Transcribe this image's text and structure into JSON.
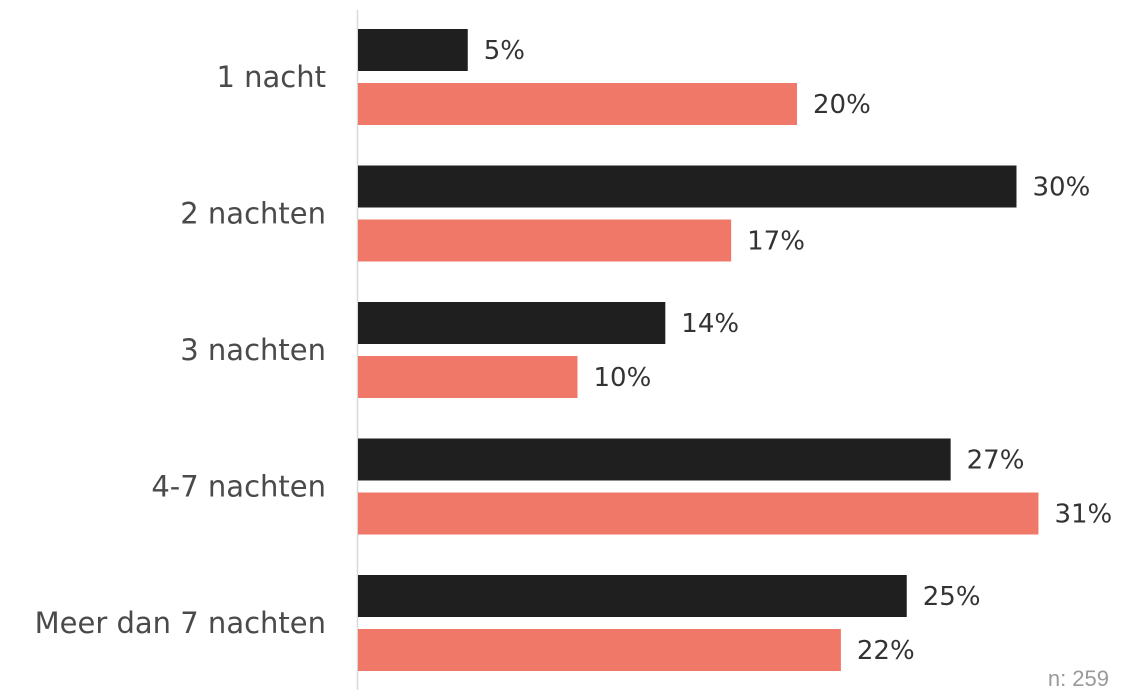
{
  "chart_data": {
    "type": "bar",
    "orientation": "horizontal",
    "categories": [
      "1 nacht",
      "2 nachten",
      "3 nachten",
      "4-7 nachten",
      "Meer dan 7 nachten"
    ],
    "series": [
      {
        "values": [
          5,
          30,
          14,
          27,
          25
        ],
        "color": "#1f1f1f"
      },
      {
        "values": [
          20,
          17,
          10,
          31,
          22
        ],
        "color": "#ef7869"
      }
    ],
    "value_suffix": "%",
    "xlim": [
      0,
      31
    ],
    "grid": false,
    "legend": "none"
  },
  "footnote": "n: 259"
}
